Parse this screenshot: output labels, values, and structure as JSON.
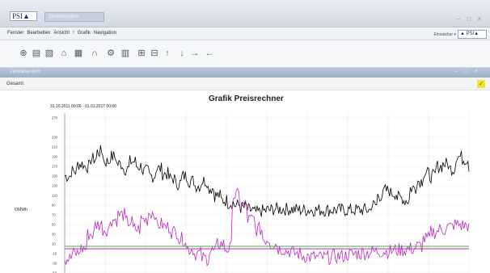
{
  "window": {
    "logo_text": "PSI▲",
    "tab_label": "Zentralsystem",
    "controls": "– □ ×"
  },
  "menubar": {
    "items": [
      "Fenster",
      "Bearbeiten",
      "Ansicht",
      "!",
      "Grafik",
      "Navigation"
    ],
    "user_select": "Einsatzbar ▾",
    "right_logo": "▲ PSI▲"
  },
  "toolbar": {
    "tools": [
      {
        "name": "globe-icon",
        "glyph": "⊕"
      },
      {
        "name": "document-icon",
        "glyph": "▤"
      },
      {
        "name": "clipboard-icon",
        "glyph": "▧"
      },
      {
        "name": "home-icon",
        "glyph": "⌂"
      },
      {
        "name": "calendar-icon",
        "glyph": "▦"
      },
      {
        "name": "headset-icon",
        "glyph": "∩"
      },
      {
        "name": "settings-icon",
        "glyph": "⚙"
      },
      {
        "name": "report-icon",
        "glyph": "▥"
      },
      {
        "name": "grid-icon",
        "glyph": "⊞"
      },
      {
        "name": "table-icon",
        "glyph": "⊟"
      },
      {
        "name": "arrow-up-icon",
        "glyph": "↑",
        "accent": true
      },
      {
        "name": "arrow-down-icon",
        "glyph": "↓",
        "accent": true
      },
      {
        "name": "arrow-right-icon",
        "glyph": "→",
        "accent": true
      },
      {
        "name": "arrow-left-icon",
        "glyph": "←",
        "accent": true
      }
    ]
  },
  "panel": {
    "title": "Zentralsystem",
    "controls": "– □ ×"
  },
  "section": {
    "label": "Gesamt"
  },
  "chart_data": {
    "type": "line",
    "title": "Grafik Preisrechner",
    "date_range": "31.10.2011 00:00 - 01.01.2017 00:00",
    "ylabel": "€/MWh",
    "yticks": [
      270,
      230,
      210,
      190,
      170,
      150,
      130,
      110,
      90,
      70,
      50,
      30,
      10,
      -10,
      -30,
      -50
    ],
    "ylim": [
      -50,
      280
    ],
    "grid": true,
    "series": [
      {
        "color": "#000000",
        "values": [
          150,
          160,
          175,
          170,
          185,
          200,
          180,
          190,
          175,
          165,
          180,
          170,
          160,
          150,
          165,
          155,
          145,
          135,
          150,
          140,
          130,
          140,
          125,
          110,
          100,
          95,
          90,
          85,
          80,
          75,
          78,
          80,
          82,
          82,
          82,
          81,
          80,
          80,
          80,
          80,
          80,
          80,
          80,
          80,
          80,
          80,
          80,
          90,
          110,
          120,
          115,
          105,
          100,
          125,
          140,
          155,
          150,
          170,
          175,
          165,
          190,
          185,
          170
        ]
      },
      {
        "color": "#c026c0",
        "values": [
          -20,
          -10,
          0,
          30,
          50,
          40,
          60,
          70,
          55,
          40,
          60,
          75,
          50,
          45,
          35,
          20,
          0,
          -10,
          -20,
          -5,
          10,
          0,
          110,
          90,
          60,
          40,
          20,
          10,
          0,
          -5,
          -10,
          -15,
          -17,
          -18,
          -18,
          -16,
          -15,
          -12,
          -10,
          -8,
          -6,
          -5,
          -5,
          -3,
          -2,
          0,
          5,
          20,
          35,
          40,
          45,
          50,
          48,
          44
        ]
      },
      {
        "color": "#44aa44",
        "values": [
          5,
          5,
          5,
          5,
          5,
          5,
          5,
          5,
          5,
          5,
          5,
          5,
          5,
          5,
          5,
          5,
          5,
          5,
          5,
          5,
          5,
          5,
          5,
          5,
          5,
          5,
          5,
          5,
          5,
          5,
          5,
          5,
          5,
          5,
          5,
          5,
          5,
          5,
          5,
          5,
          5,
          5,
          5,
          5,
          5,
          5,
          5,
          5
        ]
      },
      {
        "color": "#c026c0",
        "values": [
          0,
          0,
          0,
          0,
          0,
          0,
          0,
          0,
          0,
          0,
          0,
          0,
          0,
          0,
          0,
          0,
          0,
          0,
          0,
          0,
          0,
          0,
          0,
          0,
          0,
          0,
          0,
          0,
          0,
          0,
          0,
          0,
          0,
          0,
          0,
          0,
          0,
          0,
          0,
          0,
          0,
          0,
          0,
          0,
          0,
          0,
          0,
          0,
          0,
          0,
          0,
          0,
          0,
          0,
          0,
          0,
          0,
          0,
          0,
          0,
          0,
          0,
          0
        ]
      }
    ]
  }
}
